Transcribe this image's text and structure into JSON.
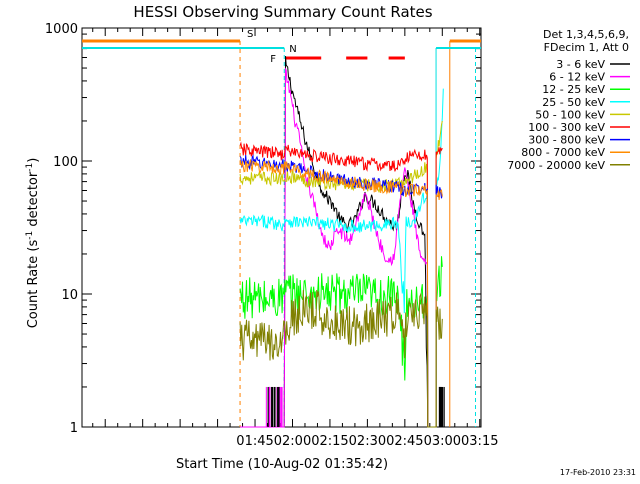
{
  "chart_data": {
    "type": "line",
    "title": "HESSI Observing Summary Count Rates",
    "xlabel": "Start Time (10-Aug-02 01:35:42)",
    "ylabel_main": "Count Rate (s",
    "ylabel_sup1": "-1",
    "ylabel_mid": " detector",
    "ylabel_sup2": "-1",
    "ylabel_end": ")",
    "yscale": "log",
    "ylim": [
      1,
      1000
    ],
    "xlim_minutes": [
      35.7,
      195.5
    ],
    "xticks": [
      {
        "label": "01:45",
        "t": 105
      },
      {
        "label": "02:00",
        "t": 120
      },
      {
        "label": "02:15",
        "t": 135
      },
      {
        "label": "02:30",
        "t": 150
      },
      {
        "label": "02:45",
        "t": 165
      },
      {
        "label": "03:00",
        "t": 180
      },
      {
        "label": "03:15",
        "t": 195
      }
    ],
    "yticks": [
      {
        "label": "1",
        "v": 1
      },
      {
        "label": "10",
        "v": 10
      },
      {
        "label": "100",
        "v": 100
      },
      {
        "label": "1000",
        "v": 1000
      }
    ],
    "legend": {
      "placement": "right",
      "header": [
        "Det 1,3,4,5,6,9,",
        "FDecim 1, Att 0"
      ]
    },
    "series": [
      {
        "name": "3 - 6 keV",
        "color": "#000000",
        "points": [
          [
            99,
            1
          ],
          [
            116.7,
            1
          ],
          [
            117.2,
            550
          ],
          [
            119,
            400
          ],
          [
            121,
            280
          ],
          [
            124,
            170
          ],
          [
            127,
            110
          ],
          [
            130,
            75
          ],
          [
            133,
            55
          ],
          [
            136,
            48
          ],
          [
            139,
            36
          ],
          [
            142,
            32
          ],
          [
            145,
            36
          ],
          [
            149,
            55
          ],
          [
            153,
            48
          ],
          [
            157,
            38
          ],
          [
            160,
            33
          ],
          [
            162,
            33
          ],
          [
            163.5,
            55
          ],
          [
            165,
            85
          ],
          [
            166.5,
            75
          ],
          [
            168,
            50
          ],
          [
            170,
            38
          ],
          [
            172,
            30
          ],
          [
            173,
            28
          ],
          [
            174.2,
            1
          ],
          [
            177.5,
            1
          ]
        ]
      },
      {
        "name": "6 - 12 keV",
        "color": "#ff00ff",
        "points": [
          [
            99,
            1
          ],
          [
            116.7,
            1
          ],
          [
            117.2,
            460
          ],
          [
            119,
            330
          ],
          [
            121,
            200
          ],
          [
            123,
            140
          ],
          [
            125,
            80
          ],
          [
            127,
            60
          ],
          [
            129,
            45
          ],
          [
            131,
            32
          ],
          [
            133,
            25
          ],
          [
            135,
            22
          ],
          [
            137,
            28
          ],
          [
            139,
            30
          ],
          [
            141,
            27
          ],
          [
            143,
            25
          ],
          [
            145,
            32
          ],
          [
            147,
            42
          ],
          [
            149,
            55
          ],
          [
            151,
            45
          ],
          [
            153,
            32
          ],
          [
            155,
            24
          ],
          [
            157,
            20
          ],
          [
            159,
            18
          ],
          [
            161,
            20
          ],
          [
            163,
            50
          ],
          [
            165,
            90
          ],
          [
            167,
            55
          ],
          [
            168.5,
            40
          ],
          [
            170,
            25
          ],
          [
            172,
            17
          ],
          [
            174,
            17
          ],
          [
            174.2,
            1
          ]
        ]
      },
      {
        "name": "12 - 25 keV",
        "color": "#00ff00",
        "points": [
          [
            99,
            9.5
          ],
          [
            110,
            9
          ],
          [
            116.5,
            9.5
          ],
          [
            117,
            10
          ],
          [
            125,
            10
          ],
          [
            140,
            10
          ],
          [
            150,
            10
          ],
          [
            155,
            9.5
          ],
          [
            160,
            9.5
          ],
          [
            163,
            8.5
          ],
          [
            164,
            4
          ],
          [
            165,
            3
          ],
          [
            165.8,
            9
          ],
          [
            168,
            9
          ],
          [
            172,
            9.2
          ],
          [
            174,
            9.5
          ],
          [
            174.2,
            1
          ],
          [
            177.5,
            1
          ],
          [
            177.5,
            10
          ],
          [
            179,
            12
          ],
          [
            180,
            16
          ]
        ]
      },
      {
        "name": "25 - 50 keV",
        "color": "#00ffff",
        "points": [
          [
            99,
            35
          ],
          [
            110,
            35
          ],
          [
            116.5,
            33
          ],
          [
            117,
            37
          ],
          [
            120,
            35
          ],
          [
            130,
            34
          ],
          [
            145,
            32
          ],
          [
            155,
            33
          ],
          [
            162,
            34
          ],
          [
            163,
            25
          ],
          [
            164,
            10
          ],
          [
            164.8,
            10
          ],
          [
            165.5,
            35
          ],
          [
            168,
            36
          ],
          [
            170,
            40
          ],
          [
            172,
            50
          ],
          [
            174,
            60
          ],
          [
            174.2,
            1
          ],
          [
            177.5,
            1
          ],
          [
            177.5,
            60
          ],
          [
            179,
            90
          ],
          [
            180,
            200
          ],
          [
            180.4,
            350
          ]
        ]
      },
      {
        "name": "50 - 100 keV",
        "color": "#c8c800",
        "points": [
          [
            99,
            75
          ],
          [
            110,
            74
          ],
          [
            116.5,
            73
          ],
          [
            117,
            78
          ],
          [
            125,
            72
          ],
          [
            135,
            68
          ],
          [
            145,
            66
          ],
          [
            155,
            65
          ],
          [
            162,
            66
          ],
          [
            164,
            70
          ],
          [
            168,
            76
          ],
          [
            172,
            85
          ],
          [
            174,
            90
          ],
          [
            174.2,
            1
          ],
          [
            177.5,
            1
          ],
          [
            177.5,
            110
          ],
          [
            179,
            150
          ],
          [
            180,
            200
          ]
        ]
      },
      {
        "name": "100 - 300 keV",
        "color": "#ff0000",
        "points": [
          [
            99,
            122
          ],
          [
            110,
            116
          ],
          [
            116.5,
            113
          ],
          [
            117,
            120
          ],
          [
            125,
            112
          ],
          [
            135,
            104
          ],
          [
            145,
            98
          ],
          [
            155,
            93
          ],
          [
            160,
            91
          ],
          [
            163,
            93
          ],
          [
            165,
            105
          ],
          [
            168,
            110
          ],
          [
            172,
            112
          ],
          [
            174,
            110
          ],
          [
            174.2,
            1
          ],
          [
            177.5,
            1
          ],
          [
            177.5,
            115
          ],
          [
            179,
            120
          ],
          [
            180,
            125
          ]
        ]
      },
      {
        "name": "300 - 800 keV",
        "color": "#0000ff",
        "points": [
          [
            99,
            100
          ],
          [
            110,
            95
          ],
          [
            116.5,
            92
          ],
          [
            117,
            92
          ],
          [
            125,
            85
          ],
          [
            135,
            75
          ],
          [
            145,
            70
          ],
          [
            155,
            66
          ],
          [
            160,
            65
          ],
          [
            163,
            63
          ],
          [
            165,
            60
          ],
          [
            168,
            60
          ],
          [
            172,
            63
          ],
          [
            174,
            64
          ],
          [
            174.2,
            1
          ],
          [
            177.5,
            1
          ],
          [
            177.5,
            60
          ],
          [
            179,
            57
          ],
          [
            180,
            56
          ]
        ]
      },
      {
        "name": "800 - 7000 keV",
        "color": "#ff8c00",
        "points": [
          [
            99,
            93
          ],
          [
            110,
            90
          ],
          [
            116.5,
            88
          ],
          [
            117,
            89
          ],
          [
            125,
            82
          ],
          [
            135,
            73
          ],
          [
            145,
            68
          ],
          [
            155,
            64
          ],
          [
            160,
            63
          ],
          [
            163,
            62
          ],
          [
            165,
            60
          ],
          [
            168,
            60
          ],
          [
            172,
            62
          ],
          [
            174,
            63
          ],
          [
            174.2,
            1
          ],
          [
            177.5,
            1
          ],
          [
            177.5,
            58
          ],
          [
            179,
            55
          ],
          [
            180,
            54
          ]
        ]
      },
      {
        "name": "7000 - 20000 keV",
        "color": "#808000",
        "points": [
          [
            99,
            4.5
          ],
          [
            110,
            4.4
          ],
          [
            116.5,
            4.5
          ],
          [
            117,
            5.5
          ],
          [
            120,
            6.5
          ],
          [
            124,
            7.5
          ],
          [
            130,
            7.5
          ],
          [
            135,
            6.2
          ],
          [
            140,
            6
          ],
          [
            145,
            5.8
          ],
          [
            150,
            6.2
          ],
          [
            155,
            6.5
          ],
          [
            160,
            7.2
          ],
          [
            163,
            7.5
          ],
          [
            164,
            5
          ],
          [
            165,
            4.2
          ],
          [
            166,
            7.5
          ],
          [
            170,
            7.6
          ],
          [
            174,
            7.8
          ],
          [
            174.2,
            1
          ],
          [
            177.5,
            1
          ],
          [
            177.5,
            6.5
          ],
          [
            180,
            6.5
          ]
        ]
      }
    ],
    "state_markers": {
      "S": {
        "label": "S",
        "color": "#ff8000"
      },
      "N": {
        "label": "N",
        "color": "#00e0e0"
      },
      "F": {
        "label": "F",
        "color": "#ff0000"
      }
    }
  },
  "footer": {
    "timestamp": "17-Feb-2010 23:31"
  }
}
